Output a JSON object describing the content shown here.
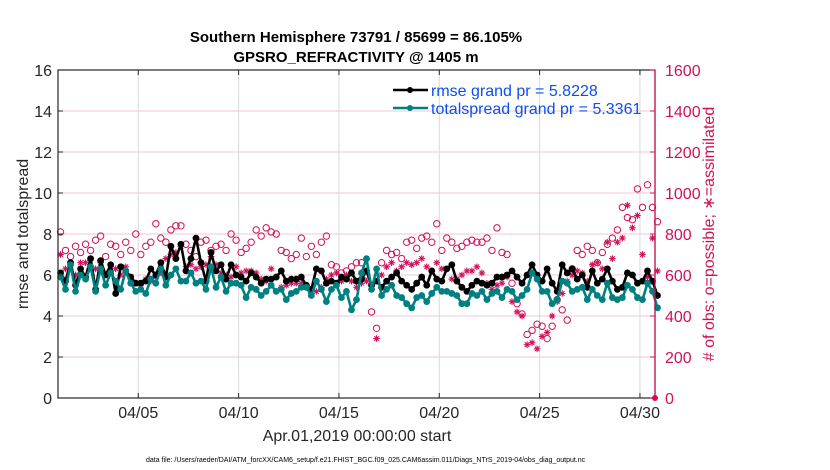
{
  "chart_data": {
    "type": "line",
    "title": "Southern Hemisphere 73791 / 85699 = 86.105%",
    "subtitle": "GPSRO_REFRACTIVITY @ 1405 m",
    "xlabel": "Apr.01,2019 00:00:00 start",
    "ylabel": "rmse and totalspread",
    "y2label": "# of obs: o=possible; ∗=assimilated",
    "footnote": "data file: /Users/raeder/DAI/ATM_forcXX/CAM6_setup/f.e21.FHIST_BGC.f09_025.CAM6assim.011/Diags_NTrS_2019-04/obs_diag_output.nc",
    "xlim_days": [
      0,
      29.75
    ],
    "x_ticks": [
      {
        "day": 4,
        "label": "04/05"
      },
      {
        "day": 9,
        "label": "04/10"
      },
      {
        "day": 14,
        "label": "04/15"
      },
      {
        "day": 19,
        "label": "04/20"
      },
      {
        "day": 24,
        "label": "04/25"
      },
      {
        "day": 29,
        "label": "04/30"
      }
    ],
    "ylim": [
      0,
      16
    ],
    "y_ticks": [
      "0",
      "2",
      "4",
      "6",
      "8",
      "10",
      "12",
      "14",
      "16"
    ],
    "y2lim": [
      0,
      1600
    ],
    "y2_ticks": [
      "0",
      "200",
      "400",
      "600",
      "800",
      "1000",
      "1200",
      "1400",
      "1600"
    ],
    "grid": true,
    "legend_position": "top-right",
    "colors": {
      "rmse": "#000000",
      "totalspread": "#008080",
      "obs": "#d0105a",
      "legend_text": "#0a4ff0",
      "grid_x": "#d9d9d9",
      "grid_y": "#f2c6d8"
    },
    "x_step_days": 0.25,
    "series": [
      {
        "name": "rmse grand pr = 5.8228",
        "axis": "left",
        "marker": "filled-circle",
        "values": [
          6.1,
          5.7,
          6.6,
          5.5,
          6.3,
          5.9,
          6.8,
          5.3,
          6.7,
          6.0,
          6.5,
          5.1,
          6.4,
          6.2,
          5.9,
          5.6,
          5.6,
          5.7,
          6.3,
          6.0,
          6.6,
          5.9,
          7.4,
          6.8,
          7.5,
          6.2,
          6.8,
          7.8,
          6.6,
          5.7,
          7.1,
          6.2,
          6.5,
          5.8,
          6.5,
          6.0,
          5.9,
          5.7,
          6.1,
          5.9,
          5.6,
          5.8,
          5.8,
          5.9,
          6.2,
          5.7,
          5.8,
          5.8,
          5.9,
          5.5,
          5.3,
          6.3,
          6.2,
          5.6,
          5.7,
          5.6,
          5.9,
          5.8,
          6.1,
          5.7,
          5.8,
          6.2,
          5.5,
          5.7,
          5.4,
          5.7,
          5.9,
          6.1,
          5.7,
          5.5,
          5.3,
          5.6,
          5.9,
          5.5,
          6.2,
          5.8,
          5.7,
          6.3,
          6.5,
          5.7,
          5.4,
          5.2,
          5.5,
          5.7,
          5.6,
          5.5,
          5.6,
          5.9,
          5.9,
          6.0,
          6.2,
          5.9,
          5.6,
          6.0,
          6.5,
          6.0,
          5.7,
          6.3,
          5.6,
          5.2,
          6.5,
          6.1,
          6.3,
          5.8,
          6.0,
          5.4,
          6.2,
          5.6,
          5.8,
          6.3,
          5.7,
          5.3,
          5.4,
          6.1,
          6.0,
          5.6,
          5.7,
          6.2,
          5.7,
          5.0
        ]
      },
      {
        "name": "totalspread grand pr = 5.3361",
        "axis": "left",
        "marker": "filled-circle",
        "values": [
          5.9,
          5.3,
          6.5,
          5.2,
          6.0,
          5.8,
          6.4,
          5.2,
          6.3,
          5.5,
          6.1,
          5.7,
          5.3,
          6.2,
          5.6,
          5.2,
          5.3,
          5.1,
          5.8,
          5.6,
          6.3,
          5.5,
          6.0,
          6.3,
          5.7,
          5.7,
          6.1,
          5.6,
          5.7,
          5.3,
          6.4,
          5.4,
          5.9,
          5.2,
          5.6,
          5.6,
          5.5,
          4.9,
          5.4,
          5.3,
          5.0,
          5.2,
          5.5,
          5.2,
          5.3,
          4.8,
          5.1,
          5.2,
          5.4,
          5.4,
          5.0,
          5.7,
          5.3,
          4.7,
          5.3,
          5.5,
          4.9,
          5.2,
          4.3,
          4.8,
          6.1,
          6.8,
          5.3,
          6.3,
          5.0,
          5.3,
          5.5,
          5.0,
          4.9,
          4.6,
          4.4,
          4.9,
          5.0,
          4.7,
          5.1,
          5.4,
          5.2,
          5.2,
          5.1,
          5.0,
          4.6,
          4.6,
          5.1,
          5.0,
          5.2,
          4.8,
          5.1,
          5.2,
          4.9,
          5.3,
          5.2,
          4.8,
          5.0,
          5.3,
          6.1,
          5.8,
          5.2,
          5.2,
          4.6,
          4.8,
          5.7,
          5.6,
          5.2,
          5.3,
          5.4,
          4.8,
          5.3,
          5.0,
          4.8,
          5.6,
          4.9,
          4.8,
          4.9,
          5.5,
          5.3,
          4.9,
          4.8,
          5.6,
          5.2,
          4.4
        ]
      },
      {
        "name": "possible",
        "axis": "right",
        "marker": "open-circle",
        "values": [
          810,
          720,
          690,
          740,
          710,
          750,
          720,
          770,
          790,
          690,
          750,
          740,
          700,
          760,
          720,
          800,
          700,
          740,
          760,
          850,
          780,
          760,
          820,
          840,
          840,
          750,
          720,
          690,
          760,
          770,
          720,
          740,
          750,
          720,
          800,
          770,
          710,
          730,
          760,
          820,
          790,
          830,
          810,
          800,
          720,
          710,
          680,
          700,
          780,
          690,
          740,
          700,
          760,
          790,
          650,
          640,
          610,
          620,
          640,
          660,
          660,
          600,
          420,
          340,
          660,
          720,
          700,
          710,
          680,
          760,
          770,
          730,
          780,
          790,
          760,
          850,
          720,
          780,
          760,
          730,
          740,
          760,
          770,
          760,
          760,
          780,
          720,
          830,
          710,
          700,
          560,
          460,
          410,
          310,
          330,
          360,
          350,
          290,
          350,
          480,
          430,
          380,
          630,
          720,
          700,
          740,
          720,
          660,
          710,
          750,
          780,
          820,
          930,
          880,
          870,
          1020,
          930,
          1040,
          930,
          860
        ]
      },
      {
        "name": "assimilated",
        "axis": "right",
        "marker": "asterisk",
        "values": [
          700,
          630,
          650,
          600,
          660,
          660,
          640,
          630,
          660,
          550,
          620,
          630,
          600,
          640,
          580,
          560,
          550,
          580,
          570,
          590,
          610,
          680,
          700,
          710,
          740,
          640,
          650,
          630,
          640,
          650,
          690,
          650,
          610,
          600,
          590,
          640,
          610,
          620,
          620,
          610,
          580,
          570,
          630,
          590,
          540,
          550,
          560,
          560,
          560,
          550,
          510,
          520,
          540,
          580,
          600,
          610,
          570,
          600,
          570,
          540,
          560,
          570,
          530,
          290,
          600,
          640,
          660,
          620,
          640,
          660,
          650,
          660,
          680,
          640,
          620,
          660,
          630,
          630,
          580,
          580,
          600,
          620,
          620,
          640,
          610,
          560,
          530,
          550,
          560,
          590,
          470,
          420,
          400,
          260,
          270,
          240,
          300,
          320,
          400,
          470,
          510,
          570,
          600,
          620,
          610,
          570,
          650,
          660,
          630,
          760,
          680,
          760,
          780,
          940,
          830,
          890,
          700,
          590,
          780,
          620
        ]
      }
    ]
  }
}
